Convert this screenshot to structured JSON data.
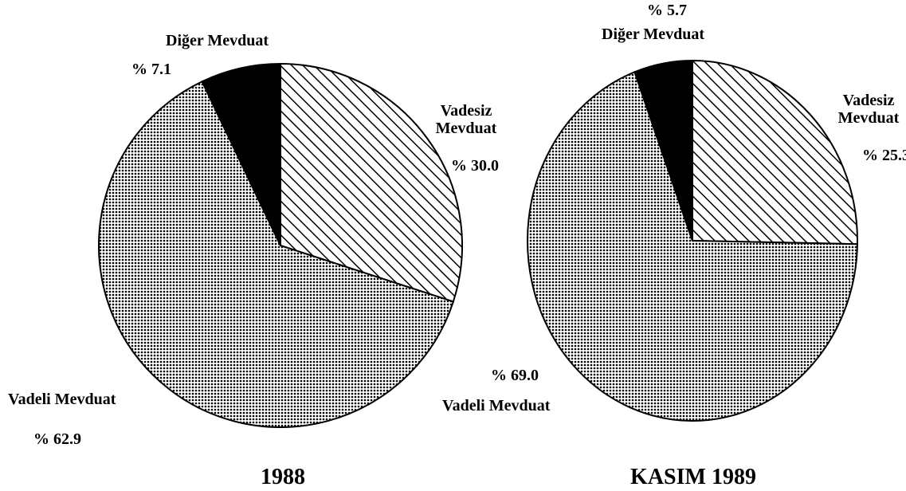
{
  "chart_data": [
    {
      "type": "pie",
      "title": "1988",
      "categories": [
        "Vadesiz Mevduat",
        "Vadeli Mevduat",
        "Diğer Mevduat"
      ],
      "values": [
        30.0,
        62.9,
        7.1
      ],
      "value_labels": [
        "% 30.0",
        "% 62.9",
        "% 7.1"
      ]
    },
    {
      "type": "pie",
      "title": "KASIM 1989",
      "categories": [
        "Vadesiz Mevduat",
        "Vadeli Mevduat",
        "Diğer Mevduat"
      ],
      "values": [
        25.3,
        69.0,
        5.7
      ],
      "value_labels": [
        "% 25.3",
        "% 69.0",
        "% 5.7"
      ]
    }
  ]
}
